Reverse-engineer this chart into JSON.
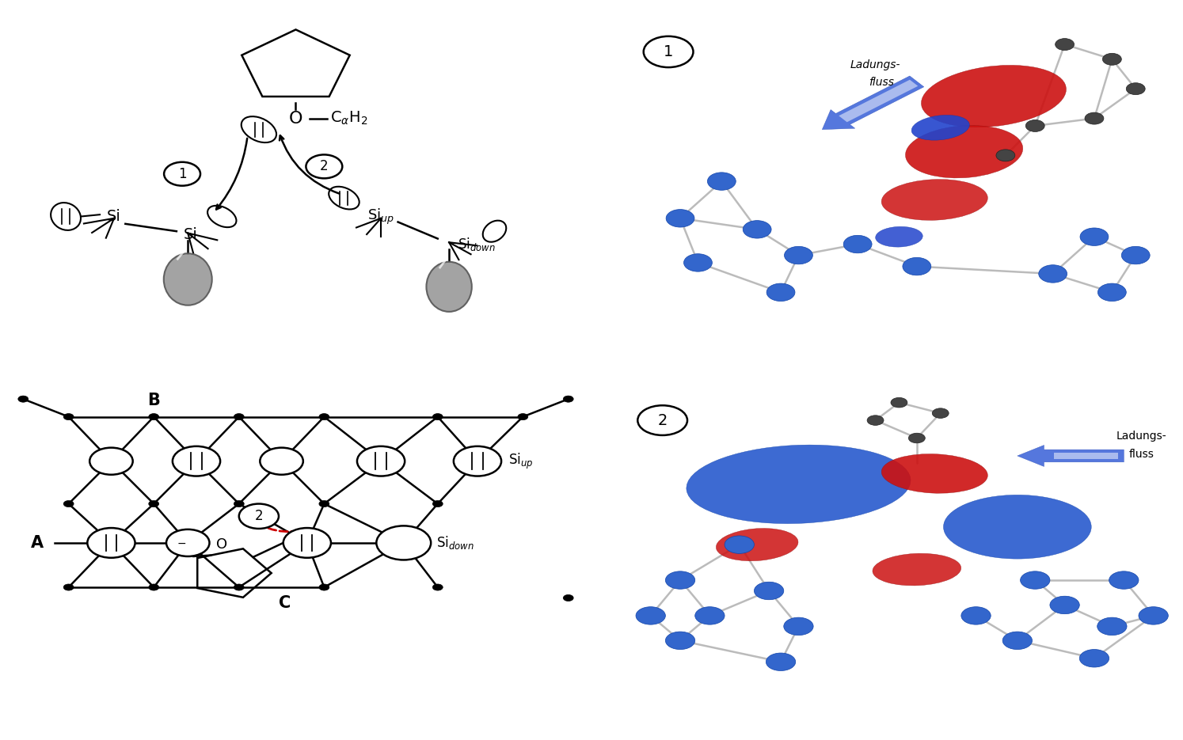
{
  "bg_color": "#ffffff",
  "panel1_circle_label": "1",
  "panel2_circle_label": "2",
  "ladungsfluss": "Ladungs-\nfluss",
  "label_A": "A",
  "label_B": "B",
  "label_C": "C",
  "red_color": "#cc2222",
  "blue_color": "#2255cc",
  "dashed_red": "#cc0000"
}
